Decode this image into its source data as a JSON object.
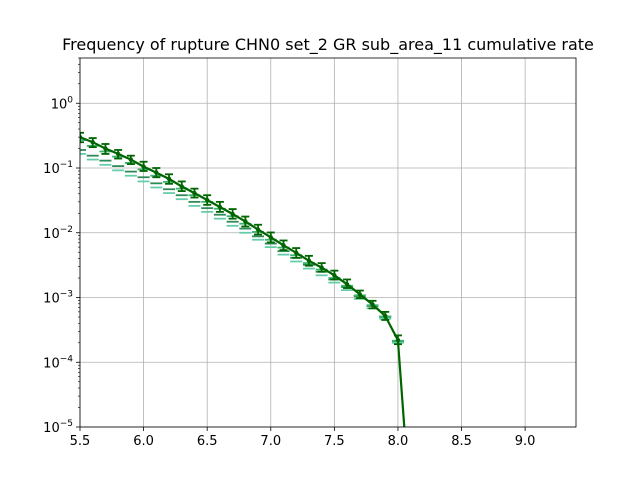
{
  "chart_data": {
    "type": "line",
    "title": "Frequency of rupture CHN0 set_2 GR sub_area_11 cumulative rate",
    "xlabel": "",
    "ylabel": "",
    "xlim": [
      5.5,
      9.4
    ],
    "ylim": [
      1e-05,
      5
    ],
    "yscale": "log",
    "grid": true,
    "x_ticks": [
      5.5,
      6.0,
      6.5,
      7.0,
      7.5,
      8.0,
      8.5,
      9.0
    ],
    "x_tick_labels": [
      "5.5",
      "6.0",
      "6.5",
      "7.0",
      "7.5",
      "8.0",
      "8.5",
      "9.0"
    ],
    "y_ticks": [
      {
        "value": 1e-05,
        "base": "10",
        "exp": "−5"
      },
      {
        "value": 0.0001,
        "base": "10",
        "exp": "−4"
      },
      {
        "value": 0.001,
        "base": "10",
        "exp": "−3"
      },
      {
        "value": 0.01,
        "base": "10",
        "exp": "−2"
      },
      {
        "value": 0.1,
        "base": "10",
        "exp": "−1"
      },
      {
        "value": 1,
        "base": "10",
        "exp": "0"
      }
    ],
    "series": [
      {
        "color": "#006400",
        "style": "solid",
        "x": [
          5.5,
          5.6,
          5.7,
          5.8,
          5.9,
          6.0,
          6.1,
          6.2,
          6.3,
          6.4,
          6.5,
          6.6,
          6.7,
          6.8,
          6.9,
          7.0,
          7.1,
          7.2,
          7.3,
          7.4,
          7.5,
          7.6,
          7.7,
          7.8,
          7.9,
          8.0,
          8.05
        ],
        "values": [
          0.3,
          0.25,
          0.2,
          0.165,
          0.135,
          0.105,
          0.085,
          0.068,
          0.052,
          0.041,
          0.032,
          0.025,
          0.0195,
          0.015,
          0.0112,
          0.0085,
          0.0064,
          0.0049,
          0.0037,
          0.0029,
          0.0022,
          0.0016,
          0.00112,
          0.00078,
          0.00052,
          0.00022,
          1e-05
        ],
        "error_low": [
          0.25,
          0.21,
          0.165,
          0.14,
          0.115,
          0.09,
          0.072,
          0.057,
          0.044,
          0.035,
          0.027,
          0.021,
          0.0165,
          0.0125,
          0.0094,
          0.0071,
          0.0054,
          0.0041,
          0.0031,
          0.0025,
          0.0019,
          0.0014,
          0.00098,
          0.00068,
          0.00045,
          0.00019,
          null
        ],
        "error_high": [
          0.35,
          0.29,
          0.235,
          0.19,
          0.155,
          0.125,
          0.1,
          0.08,
          0.062,
          0.048,
          0.038,
          0.03,
          0.0232,
          0.0178,
          0.0133,
          0.0101,
          0.0076,
          0.0058,
          0.0044,
          0.0034,
          0.0026,
          0.0019,
          0.00128,
          0.00089,
          0.0006,
          0.00026,
          null
        ]
      },
      {
        "color": "#2e8b57",
        "style": "dashed",
        "x": [
          5.5,
          5.6,
          5.7,
          5.8,
          5.9,
          6.0,
          6.1,
          6.2,
          6.3,
          6.4,
          6.5,
          6.6,
          6.7,
          6.8,
          6.9,
          7.0,
          7.1,
          7.2,
          7.3,
          7.4,
          7.5,
          7.6,
          7.7,
          7.8,
          7.9,
          8.0
        ],
        "values": [
          0.19,
          0.155,
          0.13,
          0.107,
          0.088,
          0.072,
          0.058,
          0.047,
          0.038,
          0.03,
          0.024,
          0.019,
          0.0148,
          0.0116,
          0.0088,
          0.0068,
          0.0052,
          0.0041,
          0.0032,
          0.0025,
          0.0019,
          0.00145,
          0.00105,
          0.00074,
          0.0005,
          0.00021
        ]
      },
      {
        "color": "#66cdaa",
        "style": "dashed",
        "x": [
          5.5,
          5.6,
          5.7,
          5.8,
          5.9,
          6.0,
          6.1,
          6.2,
          6.3,
          6.4,
          6.5,
          6.6,
          6.7,
          6.8,
          6.9,
          7.0,
          7.1,
          7.2,
          7.3,
          7.4,
          7.5,
          7.6,
          7.7,
          7.8,
          7.9,
          8.0
        ],
        "values": [
          0.165,
          0.135,
          0.112,
          0.092,
          0.076,
          0.062,
          0.05,
          0.041,
          0.033,
          0.026,
          0.021,
          0.0165,
          0.0128,
          0.01,
          0.0078,
          0.006,
          0.0046,
          0.0036,
          0.0028,
          0.0022,
          0.0017,
          0.0013,
          0.00095,
          0.00068,
          0.00047,
          0.0002
        ]
      },
      {
        "color": "#3cb371",
        "style": "dashed",
        "x": [
          5.5,
          5.6,
          5.7,
          5.8,
          5.9,
          6.0,
          6.1,
          6.2,
          6.3,
          6.4,
          6.5,
          6.6,
          6.7,
          6.8,
          6.9,
          7.0,
          7.1,
          7.2,
          7.3,
          7.4,
          7.5,
          7.6,
          7.7,
          7.8,
          7.9,
          8.0
        ],
        "values": [
          0.27,
          0.22,
          0.18,
          0.15,
          0.12,
          0.095,
          0.076,
          0.061,
          0.048,
          0.038,
          0.03,
          0.0235,
          0.018,
          0.0138,
          0.0103,
          0.0078,
          0.0059,
          0.0045,
          0.0034,
          0.0027,
          0.002,
          0.00152,
          0.00108,
          0.00076,
          0.00051,
          0.000215
        ]
      }
    ]
  }
}
